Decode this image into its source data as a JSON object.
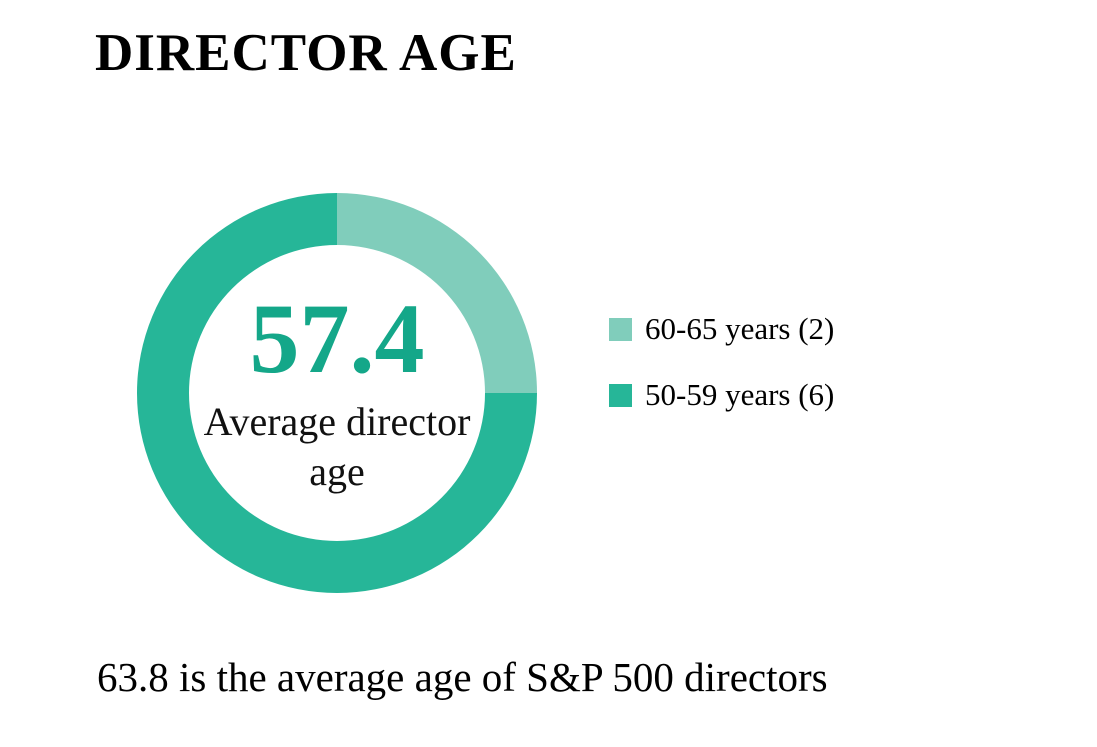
{
  "chart_data": {
    "type": "pie",
    "variant": "donut",
    "title": "DIRECTOR AGE",
    "categories": [
      "60-65 years",
      "50-59 years"
    ],
    "values": [
      2,
      6
    ],
    "series": [
      {
        "label": "60-65 years",
        "count": 2,
        "legend_text": "60-65 years (2)",
        "color": "#80cdbb"
      },
      {
        "label": "50-59 years",
        "count": 6,
        "legend_text": "50-59 years (6)",
        "color": "#26b698"
      }
    ],
    "start_angle": "top",
    "direction": "clockwise",
    "legend_position": "right",
    "center_value": "57.4",
    "center_value_color": "#14a789",
    "center_caption": "Average director age",
    "center_caption_lines": [
      "Average director",
      "age"
    ],
    "footnote": "63.8 is the average age of S&P 500 directors"
  },
  "colors": {
    "background": "#ffffff",
    "text": "#000000",
    "accent_dark": "#26b698",
    "accent_light": "#80cdbb",
    "center_value": "#14a789"
  }
}
